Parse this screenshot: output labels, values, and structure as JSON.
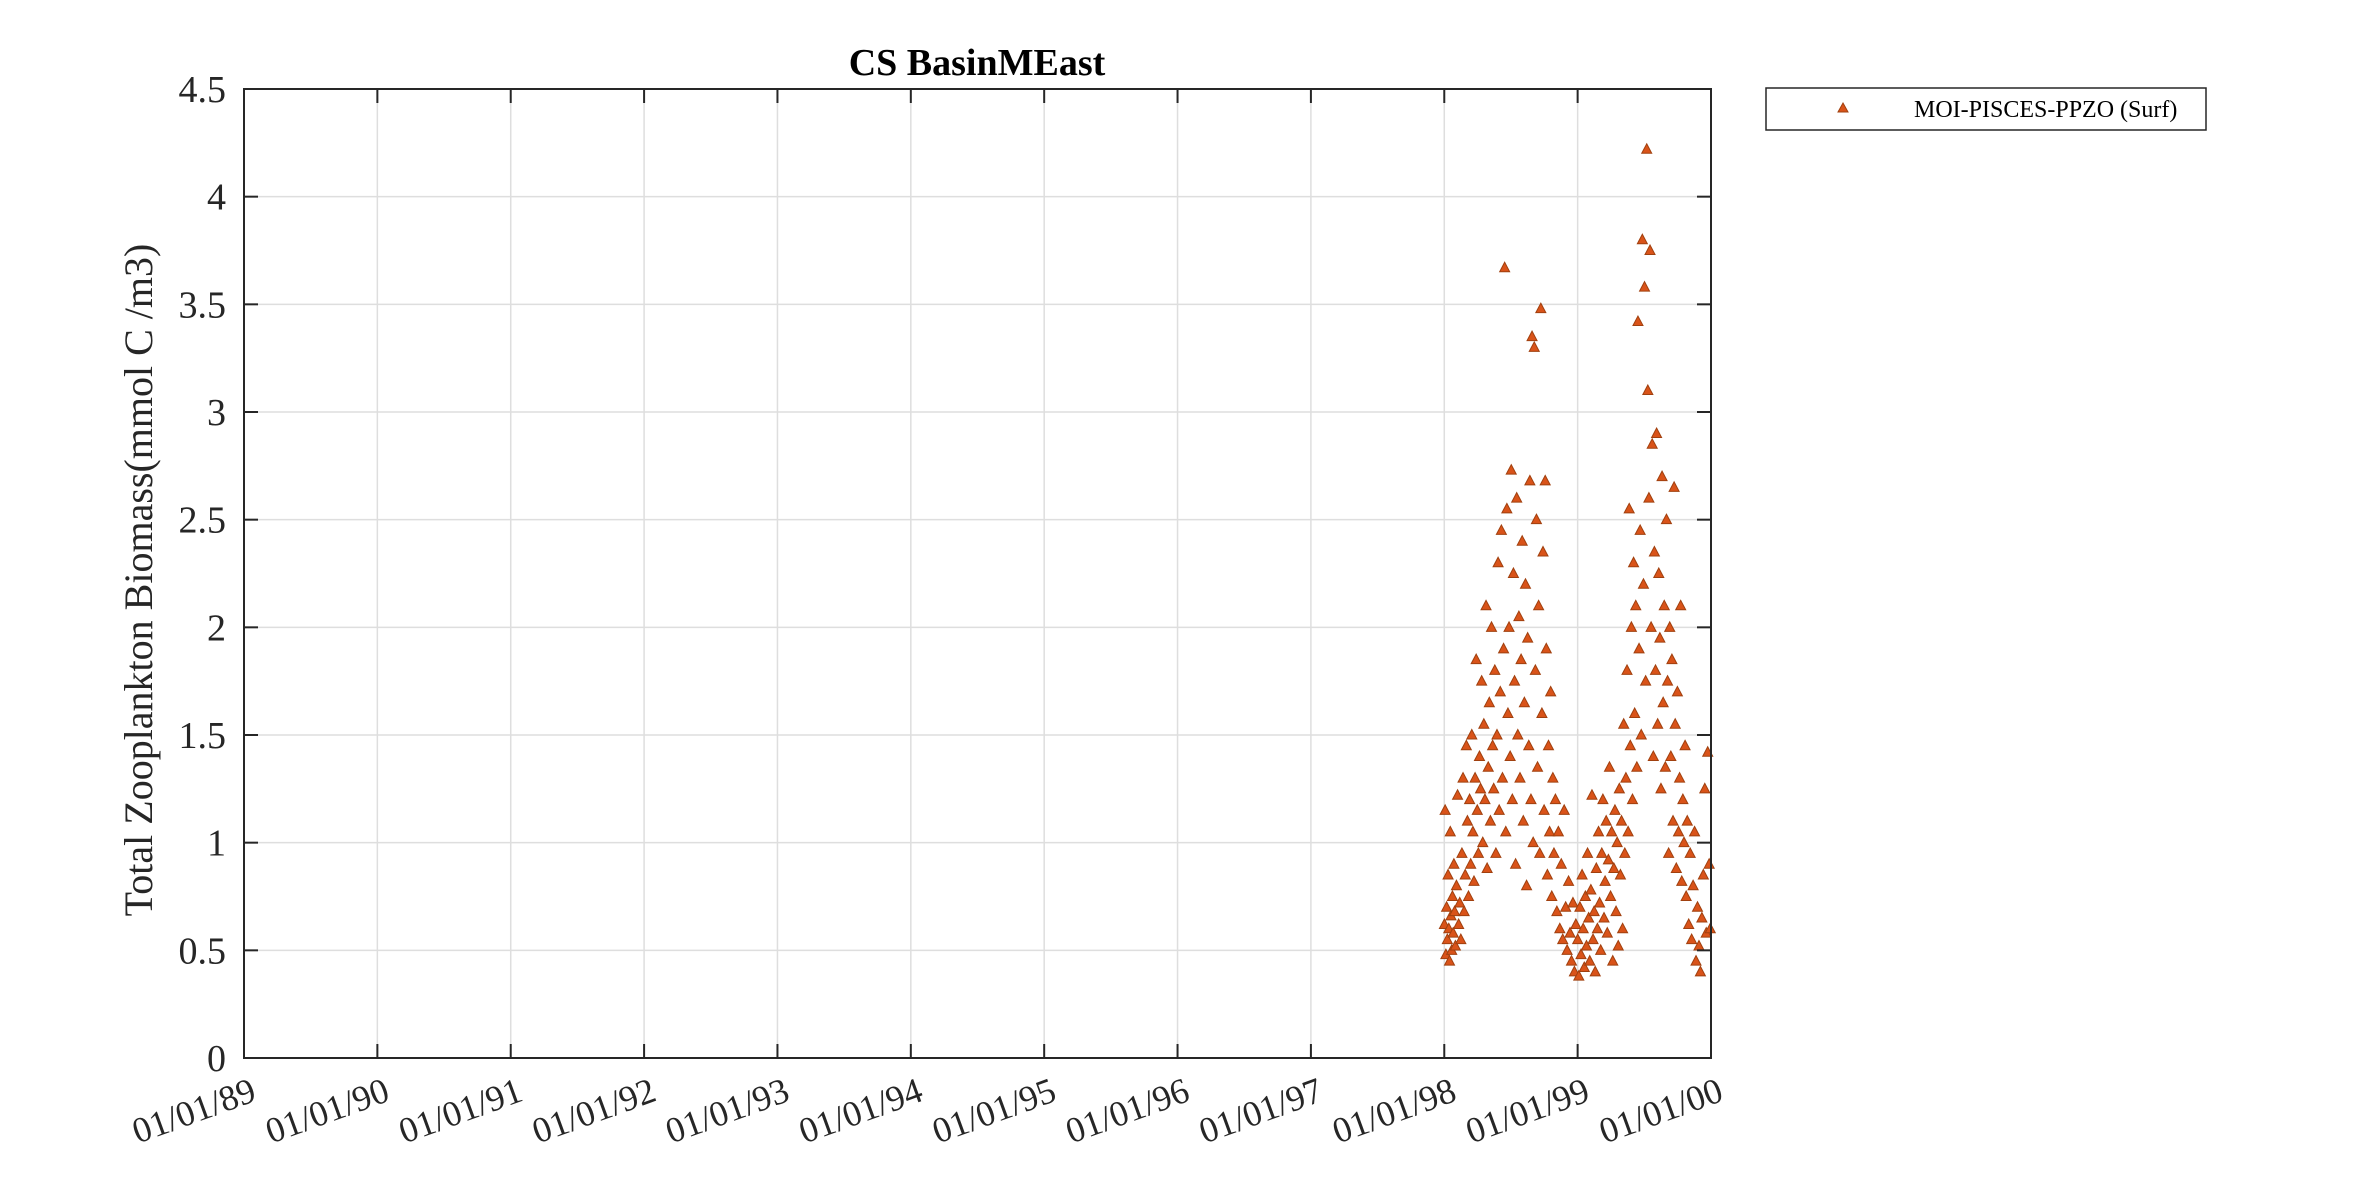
{
  "chart_data": {
    "type": "scatter",
    "title": "CS BasinMEast",
    "xlabel": "",
    "ylabel": "Total Zooplankton Biomass(mmol C /m3)",
    "x_tick_labels": [
      "01/01/89",
      "01/01/90",
      "01/01/91",
      "01/01/92",
      "01/01/93",
      "01/01/94",
      "01/01/95",
      "01/01/96",
      "01/01/97",
      "01/01/98",
      "01/01/99",
      "01/01/00"
    ],
    "xlim": [
      "1989-01-01",
      "2000-01-01"
    ],
    "y_tick_labels": [
      "0",
      "0.5",
      "1",
      "1.5",
      "2",
      "2.5",
      "3",
      "3.5",
      "4",
      "4.5"
    ],
    "ylim": [
      0,
      4.5
    ],
    "grid": true,
    "legend_position": "outside-top-right",
    "series": [
      {
        "name": "MOI-PISCES-PPZO (Surf)",
        "color": "#D95319",
        "marker": "triangle",
        "points": [
          [
            "1998-01-01",
            0.62
          ],
          [
            "1998-01-03",
            1.15
          ],
          [
            "1998-01-05",
            0.48
          ],
          [
            "1998-01-07",
            0.7
          ],
          [
            "1998-01-09",
            0.55
          ],
          [
            "1998-01-11",
            0.85
          ],
          [
            "1998-01-13",
            0.6
          ],
          [
            "1998-01-15",
            0.45
          ],
          [
            "1998-01-17",
            1.05
          ],
          [
            "1998-01-19",
            0.66
          ],
          [
            "1998-01-21",
            0.5
          ],
          [
            "1998-01-23",
            0.75
          ],
          [
            "1998-01-25",
            0.58
          ],
          [
            "1998-01-27",
            0.9
          ],
          [
            "1998-01-29",
            0.68
          ],
          [
            "1998-01-31",
            0.52
          ],
          [
            "1998-02-03",
            0.8
          ],
          [
            "1998-02-06",
            1.22
          ],
          [
            "1998-02-09",
            0.62
          ],
          [
            "1998-02-12",
            0.72
          ],
          [
            "1998-02-15",
            0.55
          ],
          [
            "1998-02-18",
            0.95
          ],
          [
            "1998-02-21",
            1.3
          ],
          [
            "1998-02-24",
            0.68
          ],
          [
            "1998-02-27",
            0.85
          ],
          [
            "1998-03-02",
            1.45
          ],
          [
            "1998-03-05",
            1.1
          ],
          [
            "1998-03-08",
            0.75
          ],
          [
            "1998-03-11",
            1.2
          ],
          [
            "1998-03-14",
            0.9
          ],
          [
            "1998-03-17",
            1.5
          ],
          [
            "1998-03-20",
            1.05
          ],
          [
            "1998-03-23",
            0.82
          ],
          [
            "1998-03-26",
            1.3
          ],
          [
            "1998-03-29",
            1.85
          ],
          [
            "1998-04-01",
            1.15
          ],
          [
            "1998-04-04",
            0.95
          ],
          [
            "1998-04-07",
            1.4
          ],
          [
            "1998-04-10",
            1.25
          ],
          [
            "1998-04-13",
            1.75
          ],
          [
            "1998-04-16",
            1.0
          ],
          [
            "1998-04-19",
            1.55
          ],
          [
            "1998-04-22",
            1.2
          ],
          [
            "1998-04-25",
            2.1
          ],
          [
            "1998-04-28",
            0.88
          ],
          [
            "1998-05-01",
            1.35
          ],
          [
            "1998-05-04",
            1.65
          ],
          [
            "1998-05-07",
            1.1
          ],
          [
            "1998-05-10",
            2.0
          ],
          [
            "1998-05-13",
            1.45
          ],
          [
            "1998-05-16",
            1.25
          ],
          [
            "1998-05-19",
            1.8
          ],
          [
            "1998-05-22",
            0.95
          ],
          [
            "1998-05-25",
            1.5
          ],
          [
            "1998-05-28",
            2.3
          ],
          [
            "1998-05-31",
            1.15
          ],
          [
            "1998-06-03",
            1.7
          ],
          [
            "1998-06-06",
            2.45
          ],
          [
            "1998-06-09",
            1.3
          ],
          [
            "1998-06-12",
            1.9
          ],
          [
            "1998-06-15",
            3.67
          ],
          [
            "1998-06-18",
            1.05
          ],
          [
            "1998-06-21",
            2.55
          ],
          [
            "1998-06-24",
            1.6
          ],
          [
            "1998-06-27",
            2.0
          ],
          [
            "1998-06-30",
            1.4
          ],
          [
            "1998-07-03",
            2.73
          ],
          [
            "1998-07-06",
            1.2
          ],
          [
            "1998-07-09",
            2.25
          ],
          [
            "1998-07-12",
            1.75
          ],
          [
            "1998-07-15",
            0.9
          ],
          [
            "1998-07-18",
            2.6
          ],
          [
            "1998-07-21",
            1.5
          ],
          [
            "1998-07-24",
            2.05
          ],
          [
            "1998-07-27",
            1.3
          ],
          [
            "1998-07-30",
            1.85
          ],
          [
            "1998-08-02",
            2.4
          ],
          [
            "1998-08-05",
            1.1
          ],
          [
            "1998-08-08",
            1.65
          ],
          [
            "1998-08-11",
            2.2
          ],
          [
            "1998-08-14",
            0.8
          ],
          [
            "1998-08-17",
            1.95
          ],
          [
            "1998-08-20",
            1.45
          ],
          [
            "1998-08-23",
            2.68
          ],
          [
            "1998-08-26",
            1.2
          ],
          [
            "1998-08-29",
            3.35
          ],
          [
            "1998-09-01",
            1.0
          ],
          [
            "1998-09-04",
            3.3
          ],
          [
            "1998-09-07",
            1.8
          ],
          [
            "1998-09-10",
            2.5
          ],
          [
            "1998-09-13",
            1.35
          ],
          [
            "1998-09-16",
            2.1
          ],
          [
            "1998-09-19",
            0.95
          ],
          [
            "1998-09-22",
            3.48
          ],
          [
            "1998-09-25",
            1.6
          ],
          [
            "1998-09-28",
            2.35
          ],
          [
            "1998-10-01",
            1.15
          ],
          [
            "1998-10-04",
            2.68
          ],
          [
            "1998-10-07",
            1.9
          ],
          [
            "1998-10-10",
            0.85
          ],
          [
            "1998-10-13",
            1.45
          ],
          [
            "1998-10-16",
            1.05
          ],
          [
            "1998-10-19",
            1.7
          ],
          [
            "1998-10-22",
            0.75
          ],
          [
            "1998-10-25",
            1.3
          ],
          [
            "1998-10-28",
            0.95
          ],
          [
            "1998-11-01",
            1.2
          ],
          [
            "1998-11-05",
            0.68
          ],
          [
            "1998-11-09",
            1.05
          ],
          [
            "1998-11-13",
            0.6
          ],
          [
            "1998-11-17",
            0.9
          ],
          [
            "1998-11-21",
            0.55
          ],
          [
            "1998-11-25",
            1.15
          ],
          [
            "1998-11-29",
            0.7
          ],
          [
            "1998-12-03",
            0.5
          ],
          [
            "1998-12-07",
            0.82
          ],
          [
            "1998-12-11",
            0.58
          ],
          [
            "1998-12-15",
            0.45
          ],
          [
            "1998-12-19",
            0.72
          ],
          [
            "1998-12-23",
            0.4
          ],
          [
            "1998-12-27",
            0.62
          ],
          [
            "1999-01-01",
            0.55
          ],
          [
            "1999-01-04",
            0.38
          ],
          [
            "1999-01-07",
            0.7
          ],
          [
            "1999-01-10",
            0.48
          ],
          [
            "1999-01-13",
            0.85
          ],
          [
            "1999-01-16",
            0.6
          ],
          [
            "1999-01-19",
            0.42
          ],
          [
            "1999-01-22",
            0.75
          ],
          [
            "1999-01-25",
            0.52
          ],
          [
            "1999-01-28",
            0.95
          ],
          [
            "1999-01-31",
            0.65
          ],
          [
            "1999-02-03",
            0.45
          ],
          [
            "1999-02-06",
            0.78
          ],
          [
            "1999-02-09",
            1.22
          ],
          [
            "1999-02-12",
            0.55
          ],
          [
            "1999-02-15",
            0.68
          ],
          [
            "1999-02-18",
            0.4
          ],
          [
            "1999-02-21",
            0.88
          ],
          [
            "1999-02-24",
            0.6
          ],
          [
            "1999-02-27",
            1.05
          ],
          [
            "1999-03-02",
            0.72
          ],
          [
            "1999-03-05",
            0.5
          ],
          [
            "1999-03-08",
            0.95
          ],
          [
            "1999-03-11",
            1.2
          ],
          [
            "1999-03-14",
            0.65
          ],
          [
            "1999-03-17",
            0.82
          ],
          [
            "1999-03-20",
            1.1
          ],
          [
            "1999-03-23",
            0.58
          ],
          [
            "1999-03-26",
            0.92
          ],
          [
            "1999-03-29",
            1.35
          ],
          [
            "1999-04-01",
            0.75
          ],
          [
            "1999-04-04",
            1.05
          ],
          [
            "1999-04-07",
            0.45
          ],
          [
            "1999-04-10",
            0.88
          ],
          [
            "1999-04-13",
            1.15
          ],
          [
            "1999-04-16",
            0.68
          ],
          [
            "1999-04-19",
            1.0
          ],
          [
            "1999-04-22",
            0.52
          ],
          [
            "1999-04-25",
            1.25
          ],
          [
            "1999-04-28",
            0.85
          ],
          [
            "1999-05-01",
            1.1
          ],
          [
            "1999-05-04",
            0.6
          ],
          [
            "1999-05-07",
            1.55
          ],
          [
            "1999-05-10",
            0.95
          ],
          [
            "1999-05-13",
            1.3
          ],
          [
            "1999-05-16",
            1.8
          ],
          [
            "1999-05-19",
            1.05
          ],
          [
            "1999-05-22",
            2.55
          ],
          [
            "1999-05-25",
            1.45
          ],
          [
            "1999-05-28",
            2.0
          ],
          [
            "1999-05-31",
            1.2
          ],
          [
            "1999-06-03",
            2.3
          ],
          [
            "1999-06-06",
            1.6
          ],
          [
            "1999-06-09",
            2.1
          ],
          [
            "1999-06-12",
            1.35
          ],
          [
            "1999-06-15",
            3.42
          ],
          [
            "1999-06-18",
            1.9
          ],
          [
            "1999-06-21",
            2.45
          ],
          [
            "1999-06-24",
            1.5
          ],
          [
            "1999-06-27",
            3.8
          ],
          [
            "1999-06-30",
            2.2
          ],
          [
            "1999-07-03",
            3.58
          ],
          [
            "1999-07-06",
            1.75
          ],
          [
            "1999-07-09",
            4.22
          ],
          [
            "1999-07-12",
            3.1
          ],
          [
            "1999-07-15",
            2.6
          ],
          [
            "1999-07-18",
            3.75
          ],
          [
            "1999-07-21",
            2.0
          ],
          [
            "1999-07-24",
            2.85
          ],
          [
            "1999-07-27",
            1.4
          ],
          [
            "1999-07-30",
            2.35
          ],
          [
            "1999-08-02",
            1.8
          ],
          [
            "1999-08-05",
            2.9
          ],
          [
            "1999-08-08",
            1.55
          ],
          [
            "1999-08-11",
            2.25
          ],
          [
            "1999-08-14",
            1.95
          ],
          [
            "1999-08-17",
            1.25
          ],
          [
            "1999-08-20",
            2.7
          ],
          [
            "1999-08-23",
            1.65
          ],
          [
            "1999-08-26",
            2.1
          ],
          [
            "1999-08-29",
            1.35
          ],
          [
            "1999-09-01",
            2.5
          ],
          [
            "1999-09-04",
            1.75
          ],
          [
            "1999-09-07",
            0.95
          ],
          [
            "1999-09-10",
            2.0
          ],
          [
            "1999-09-13",
            1.4
          ],
          [
            "1999-09-16",
            1.85
          ],
          [
            "1999-09-19",
            1.1
          ],
          [
            "1999-09-22",
            2.65
          ],
          [
            "1999-09-25",
            1.55
          ],
          [
            "1999-09-28",
            0.88
          ],
          [
            "1999-10-01",
            1.7
          ],
          [
            "1999-10-04",
            1.05
          ],
          [
            "1999-10-07",
            1.3
          ],
          [
            "1999-10-10",
            2.1
          ],
          [
            "1999-10-13",
            0.82
          ],
          [
            "1999-10-16",
            1.2
          ],
          [
            "1999-10-19",
            1.0
          ],
          [
            "1999-10-22",
            1.45
          ],
          [
            "1999-10-25",
            0.75
          ],
          [
            "1999-10-28",
            1.1
          ],
          [
            "1999-11-01",
            0.62
          ],
          [
            "1999-11-05",
            0.95
          ],
          [
            "1999-11-09",
            0.55
          ],
          [
            "1999-11-13",
            0.8
          ],
          [
            "1999-11-17",
            1.05
          ],
          [
            "1999-11-21",
            0.45
          ],
          [
            "1999-11-25",
            0.7
          ],
          [
            "1999-11-29",
            0.52
          ],
          [
            "1999-12-03",
            0.4
          ],
          [
            "1999-12-07",
            0.65
          ],
          [
            "1999-12-11",
            0.85
          ],
          [
            "1999-12-15",
            1.25
          ],
          [
            "1999-12-19",
            0.58
          ],
          [
            "1999-12-23",
            1.42
          ],
          [
            "1999-12-27",
            0.9
          ],
          [
            "1999-12-30",
            0.6
          ]
        ]
      }
    ]
  }
}
